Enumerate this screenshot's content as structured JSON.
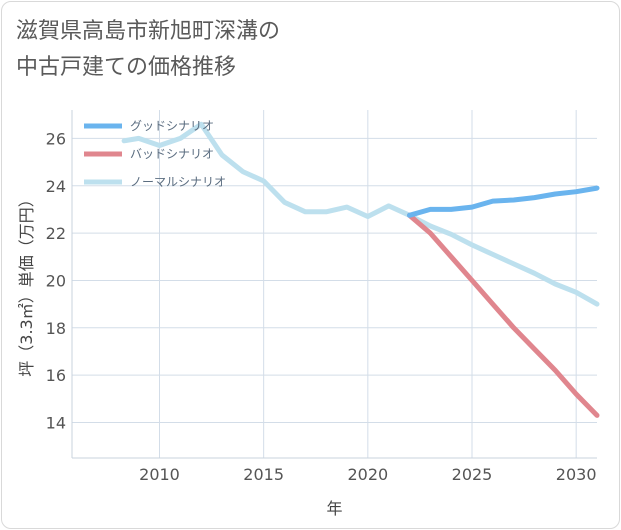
{
  "title_lines": [
    "滋賀県高島市新旭町深溝の",
    "中古戸建ての価格推移"
  ],
  "chart_data": {
    "type": "line",
    "xlabel": "年",
    "ylabel": "坪（3.3㎡）単価（万円）",
    "xlim": [
      2005.8,
      2031
    ],
    "ylim": [
      12.5,
      27.2
    ],
    "xticks": [
      2010,
      2015,
      2020,
      2025,
      2030
    ],
    "yticks": [
      14,
      16,
      18,
      20,
      22,
      24,
      26
    ],
    "grid": true,
    "legend_position": "top-left",
    "series": [
      {
        "name": "グッドシナリオ",
        "color": "#6ab4ee",
        "x": [
          2022,
          2023,
          2024,
          2025,
          2026,
          2027,
          2028,
          2029,
          2030,
          2031
        ],
        "y": [
          22.75,
          23.0,
          23.0,
          23.1,
          23.35,
          23.4,
          23.5,
          23.65,
          23.75,
          23.9
        ]
      },
      {
        "name": "バッドシナリオ",
        "color": "#e0868e",
        "x": [
          2022,
          2023,
          2024,
          2025,
          2026,
          2027,
          2028,
          2029,
          2030,
          2031
        ],
        "y": [
          22.75,
          22.0,
          21.0,
          20.0,
          19.0,
          18.0,
          17.1,
          16.2,
          15.2,
          14.3
        ]
      },
      {
        "name": "ノーマルシナリオ",
        "color": "#bde0ee",
        "x": [
          2008.3,
          2009,
          2010,
          2011,
          2012,
          2013,
          2014,
          2015,
          2016,
          2017,
          2018,
          2019,
          2020,
          2021,
          2022,
          2023,
          2024,
          2025,
          2026,
          2027,
          2028,
          2029,
          2030,
          2031
        ],
        "y": [
          25.9,
          26.0,
          25.7,
          26.0,
          26.6,
          25.3,
          24.6,
          24.2,
          23.3,
          22.9,
          22.9,
          23.1,
          22.7,
          23.15,
          22.75,
          22.3,
          21.95,
          21.5,
          21.1,
          20.7,
          20.3,
          19.85,
          19.5,
          19.0
        ]
      }
    ]
  }
}
